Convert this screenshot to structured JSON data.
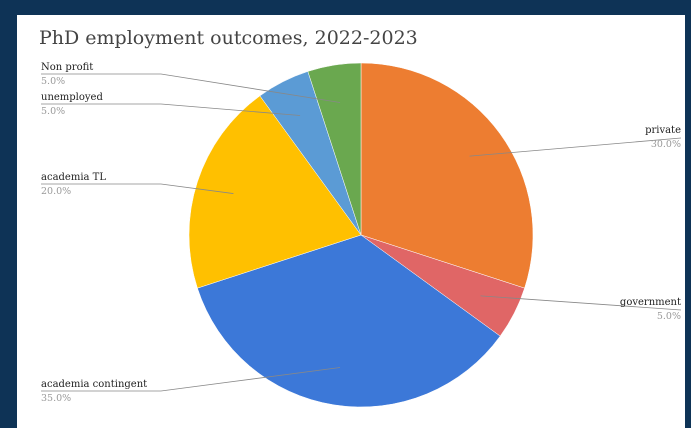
{
  "chart_data": {
    "type": "pie",
    "title": "PhD employment outcomes, 2022-2023",
    "slices": [
      {
        "label": "private",
        "value": 30.0,
        "percent_label": "30.0%",
        "color": "#ed7d31"
      },
      {
        "label": "government",
        "value": 5.0,
        "percent_label": "5.0%",
        "color": "#e06666"
      },
      {
        "label": "academia contingent",
        "value": 35.0,
        "percent_label": "35.0%",
        "color": "#3c78d8"
      },
      {
        "label": "academia TL",
        "value": 20.0,
        "percent_label": "20.0%",
        "color": "#ffc000"
      },
      {
        "label": "unemployed",
        "value": 5.0,
        "percent_label": "5.0%",
        "color": "#5b9bd5"
      },
      {
        "label": "Non profit",
        "value": 5.0,
        "percent_label": "5.0%",
        "color": "#6aa84f"
      }
    ],
    "start_angle": "12 o'clock",
    "direction": "clockwise",
    "label_style": "outside-leader-lines"
  },
  "colors": {
    "frame_background": "#0e3356",
    "panel_background": "#ffffff",
    "leader_line": "#888888"
  }
}
